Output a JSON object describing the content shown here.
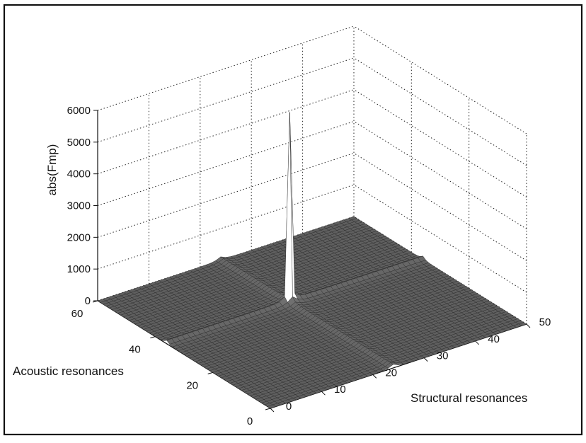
{
  "chart_data": {
    "type": "surface",
    "title": "",
    "xlabel": "Structural resonances",
    "ylabel": "Acoustic resonances",
    "zlabel": "abs(Fmp)",
    "xlim": [
      0,
      50
    ],
    "ylim": [
      0,
      60
    ],
    "zlim": [
      0,
      6000
    ],
    "x_ticks": [
      "0",
      "10",
      "20",
      "30",
      "40",
      "50"
    ],
    "y_ticks": [
      "0",
      "20",
      "40",
      "60"
    ],
    "z_ticks": [
      "0",
      "1000",
      "2000",
      "3000",
      "4000",
      "5000",
      "6000"
    ],
    "grid": true,
    "colormap": "gray",
    "peak": {
      "x": 24,
      "y": 36,
      "z": 5800
    },
    "ridge_lines": [
      {
        "axis": "x",
        "value": 24
      },
      {
        "axis": "y",
        "value": 36
      }
    ],
    "baseline_value": 0
  }
}
